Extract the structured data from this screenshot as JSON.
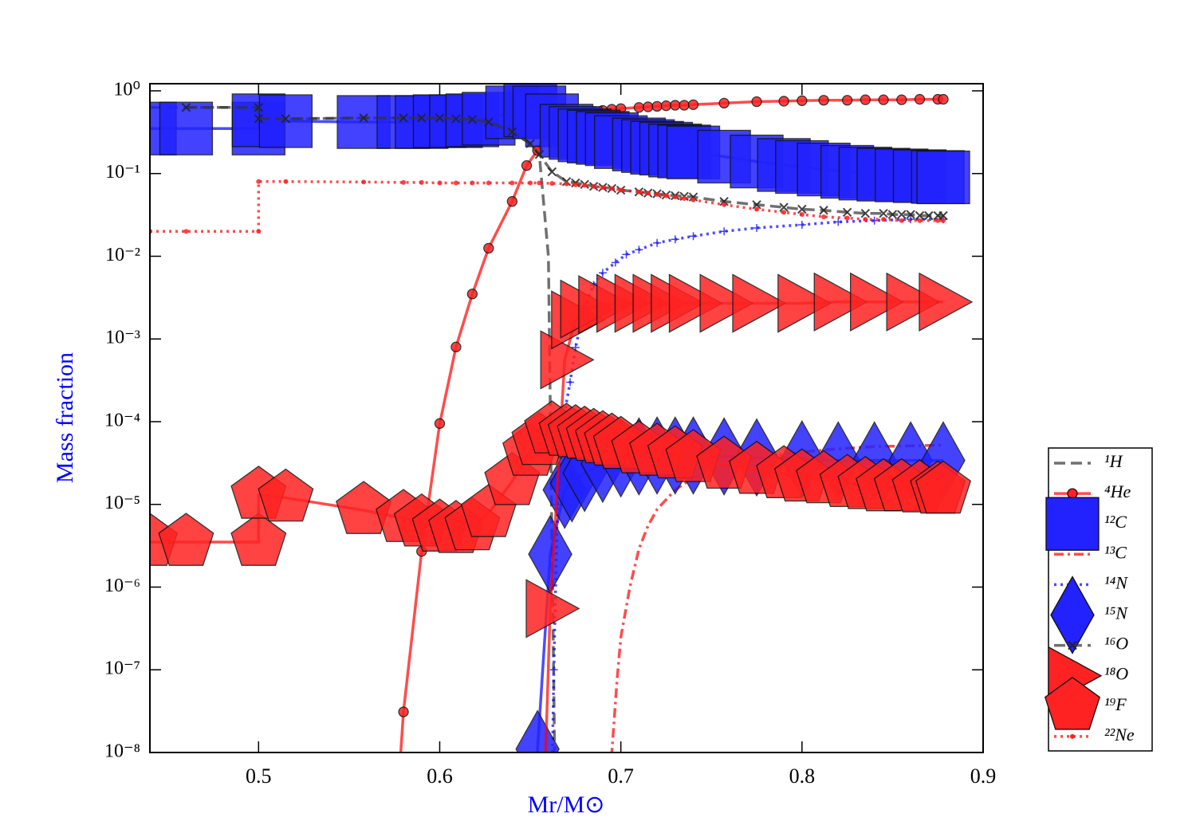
{
  "chart_data": {
    "type": "line",
    "xlabel": "Mr/M⊙",
    "ylabel": "Mass fraction",
    "xlim": [
      0.44,
      0.9
    ],
    "ylim": [
      1e-08,
      1.22
    ],
    "log_y": true,
    "xticks": [
      0.5,
      0.6,
      0.7,
      0.8,
      0.9
    ],
    "yticks": [
      {
        "value": 1e-08,
        "label": "10⁻⁸"
      },
      {
        "value": 1e-07,
        "label": "10⁻⁷"
      },
      {
        "value": 1e-06,
        "label": "10⁻⁶"
      },
      {
        "value": 1e-05,
        "label": "10⁻⁵"
      },
      {
        "value": 0.0001,
        "label": "10⁻⁴"
      },
      {
        "value": 0.001,
        "label": "10⁻³"
      },
      {
        "value": 0.01,
        "label": "10⁻²"
      },
      {
        "value": 0.1,
        "label": "10⁻¹"
      },
      {
        "value": 1,
        "label": "10⁰"
      }
    ],
    "legend": "outside-lower-right",
    "series": [
      {
        "name": "¹H",
        "color": "#333333",
        "linestyle": "dashed",
        "marker": "none",
        "x": [
          0.44,
          0.5,
          0.5,
          0.52,
          0.56,
          0.6,
          0.62,
          0.63,
          0.64,
          0.65,
          0.655,
          0.66,
          0.664
        ],
        "values": [
          0.63,
          0.63,
          0.46,
          0.46,
          0.47,
          0.47,
          0.45,
          0.42,
          0.32,
          0.23,
          0.17,
          0.01,
          1e-09
        ]
      },
      {
        "name": "⁴He",
        "color": "#ff0000",
        "linestyle": "solid",
        "marker": "o",
        "x": [
          0.5755,
          0.58,
          0.59,
          0.6,
          0.609,
          0.618,
          0.627,
          0.64,
          0.648,
          0.654,
          0.661,
          0.67,
          0.675,
          0.68,
          0.685,
          0.69,
          0.695,
          0.7,
          0.71,
          0.715,
          0.72,
          0.725,
          0.73,
          0.735,
          0.74,
          0.757,
          0.775,
          0.79,
          0.8,
          0.812,
          0.825,
          0.835,
          0.845,
          0.855,
          0.865,
          0.875,
          0.878
        ],
        "values": [
          1e-09,
          3.1e-08,
          2.7e-06,
          9.5e-05,
          0.0008,
          0.0035,
          0.0125,
          0.046,
          0.125,
          0.19,
          0.39,
          0.5,
          0.52,
          0.54,
          0.56,
          0.58,
          0.6,
          0.61,
          0.63,
          0.64,
          0.65,
          0.66,
          0.67,
          0.67,
          0.68,
          0.71,
          0.74,
          0.75,
          0.76,
          0.77,
          0.77,
          0.78,
          0.78,
          0.78,
          0.79,
          0.79,
          0.79
        ]
      },
      {
        "name": "¹²C",
        "color": "#0000ff",
        "linestyle": "solid",
        "marker": "s",
        "x": [
          0.44,
          0.46,
          0.5,
          0.5,
          0.515,
          0.558,
          0.58,
          0.59,
          0.6,
          0.609,
          0.618,
          0.627,
          0.64,
          0.65,
          0.655,
          0.662,
          0.67,
          0.675,
          0.68,
          0.685,
          0.69,
          0.695,
          0.7,
          0.71,
          0.715,
          0.72,
          0.725,
          0.73,
          0.735,
          0.74,
          0.757,
          0.775,
          0.79,
          0.8,
          0.812,
          0.825,
          0.835,
          0.845,
          0.855,
          0.865,
          0.875,
          0.878
        ],
        "values": [
          0.35,
          0.35,
          0.35,
          0.44,
          0.43,
          0.42,
          0.42,
          0.42,
          0.43,
          0.43,
          0.44,
          0.46,
          0.55,
          0.58,
          0.55,
          0.44,
          0.33,
          0.31,
          0.29,
          0.28,
          0.27,
          0.26,
          0.24,
          0.225,
          0.215,
          0.205,
          0.2,
          0.19,
          0.185,
          0.18,
          0.16,
          0.14,
          0.127,
          0.12,
          0.112,
          0.105,
          0.1,
          0.097,
          0.095,
          0.093,
          0.091,
          0.09
        ]
      },
      {
        "name": "¹³C",
        "color": "#ff0000",
        "linestyle": "dashdot",
        "marker": "none",
        "x": [
          0.694,
          0.696,
          0.698,
          0.7,
          0.705,
          0.71,
          0.715,
          0.72,
          0.73,
          0.74,
          0.75,
          0.76,
          0.78,
          0.8,
          0.82,
          0.84,
          0.86,
          0.878
        ],
        "values": [
          5e-09,
          2e-08,
          8e-08,
          2.5e-07,
          1e-06,
          2.9e-06,
          5.5e-06,
          8.7e-06,
          1.5e-05,
          2.1e-05,
          2.6e-05,
          3e-05,
          3.7e-05,
          4.3e-05,
          4.7e-05,
          5e-05,
          5.1e-05,
          5.2e-05
        ]
      },
      {
        "name": "¹⁴N",
        "color": "#0000ff",
        "linestyle": "dotted",
        "marker": "+",
        "x": [
          0.6615,
          0.663,
          0.665,
          0.668,
          0.672,
          0.675,
          0.68,
          0.685,
          0.69,
          0.697,
          0.703,
          0.71,
          0.72,
          0.73,
          0.74,
          0.757,
          0.775,
          0.8,
          0.82,
          0.84,
          0.86,
          0.878
        ],
        "values": [
          1e-09,
          1e-07,
          1e-05,
          0.0001,
          0.0003,
          0.00079,
          0.0025,
          0.0045,
          0.0063,
          0.0084,
          0.0105,
          0.012,
          0.0145,
          0.016,
          0.0175,
          0.02,
          0.022,
          0.024,
          0.026,
          0.027,
          0.028,
          0.028
        ]
      },
      {
        "name": "¹⁵N",
        "color": "#0000ff",
        "linestyle": "solid",
        "marker": "d",
        "x": [
          0.653,
          0.654,
          0.661,
          0.669,
          0.673,
          0.68,
          0.69,
          0.7,
          0.71,
          0.72,
          0.73,
          0.74,
          0.757,
          0.775,
          0.8,
          0.82,
          0.84,
          0.86,
          0.878
        ],
        "values": [
          1e-09,
          1.1e-08,
          2.5e-06,
          1.5e-05,
          1.8e-05,
          2.4e-05,
          3.1e-05,
          3.6e-05,
          3.8e-05,
          3.9e-05,
          3.9e-05,
          3.9e-05,
          3.8e-05,
          3.7e-05,
          3.5e-05,
          3.4e-05,
          3.4e-05,
          3.4e-05,
          3.4e-05
        ]
      },
      {
        "name": "¹⁶O",
        "color": "#333333",
        "linestyle": "dashed",
        "marker": "x",
        "x": [
          0.46,
          0.5,
          0.5,
          0.515,
          0.558,
          0.58,
          0.59,
          0.6,
          0.609,
          0.618,
          0.627,
          0.64,
          0.65,
          0.655,
          0.662,
          0.67,
          0.675,
          0.68,
          0.685,
          0.69,
          0.695,
          0.7,
          0.71,
          0.715,
          0.72,
          0.725,
          0.73,
          0.735,
          0.74,
          0.757,
          0.775,
          0.79,
          0.8,
          0.812,
          0.825,
          0.835,
          0.845,
          0.85,
          0.855,
          0.86,
          0.865,
          0.87,
          0.875,
          0.878
        ],
        "values": [
          0.63,
          0.63,
          0.46,
          0.46,
          0.47,
          0.47,
          0.47,
          0.47,
          0.46,
          0.45,
          0.42,
          0.32,
          0.23,
          0.17,
          0.105,
          0.08,
          0.077,
          0.074,
          0.07,
          0.068,
          0.066,
          0.063,
          0.06,
          0.058,
          0.057,
          0.055,
          0.054,
          0.053,
          0.052,
          0.046,
          0.042,
          0.039,
          0.037,
          0.036,
          0.034,
          0.033,
          0.033,
          0.032,
          0.032,
          0.032,
          0.031,
          0.031,
          0.031,
          0.031
        ]
      },
      {
        "name": "¹⁸O",
        "color": "#ff0000",
        "linestyle": "solid",
        "marker": ">",
        "x": [
          0.657,
          0.661,
          0.669,
          0.675,
          0.68,
          0.69,
          0.7,
          0.71,
          0.72,
          0.73,
          0.74,
          0.757,
          0.775,
          0.8,
          0.82,
          0.84,
          0.86,
          0.878
        ],
        "values": [
          1e-09,
          5.5e-07,
          0.00056,
          0.0017,
          0.0023,
          0.0026,
          0.0027,
          0.0027,
          0.0027,
          0.0027,
          0.0027,
          0.0027,
          0.0027,
          0.0027,
          0.0028,
          0.0028,
          0.0028,
          0.0028
        ]
      },
      {
        "name": "¹⁹F",
        "color": "#ff0000",
        "linestyle": "solid",
        "marker": "p",
        "x": [
          0.44,
          0.46,
          0.5,
          0.5,
          0.515,
          0.558,
          0.58,
          0.59,
          0.6,
          0.609,
          0.618,
          0.627,
          0.64,
          0.65,
          0.655,
          0.662,
          0.67,
          0.675,
          0.68,
          0.685,
          0.69,
          0.695,
          0.7,
          0.71,
          0.72,
          0.73,
          0.74,
          0.757,
          0.775,
          0.79,
          0.8,
          0.812,
          0.825,
          0.835,
          0.845,
          0.855,
          0.865,
          0.875,
          0.878
        ],
        "values": [
          3.5e-06,
          3.5e-06,
          3.5e-06,
          1.3e-05,
          1.2e-05,
          8.5e-06,
          6.8e-06,
          6e-06,
          5.2e-06,
          5e-06,
          5.4e-06,
          7.8e-06,
          1.9e-05,
          4.3e-05,
          5.8e-05,
          8e-05,
          7.5e-05,
          7.2e-05,
          6.9e-05,
          6.5e-05,
          6.1e-05,
          5.7e-05,
          5.2e-05,
          4.6e-05,
          4.3e-05,
          4e-05,
          3.6e-05,
          3e-05,
          2.6e-05,
          2.3e-05,
          2.1e-05,
          2e-05,
          1.8e-05,
          1.7e-05,
          1.6e-05,
          1.6e-05,
          1.55e-05,
          1.5e-05,
          1.5e-05
        ]
      },
      {
        "name": "²²Ne",
        "color": "#ff0000",
        "linestyle": "dotted",
        "marker": ".",
        "x": [
          0.44,
          0.46,
          0.5,
          0.5,
          0.515,
          0.558,
          0.58,
          0.59,
          0.6,
          0.609,
          0.618,
          0.627,
          0.64,
          0.65,
          0.655,
          0.662,
          0.67,
          0.675,
          0.68,
          0.685,
          0.69,
          0.695,
          0.7,
          0.71,
          0.715,
          0.72,
          0.725,
          0.73,
          0.735,
          0.74,
          0.757,
          0.775,
          0.79,
          0.8,
          0.812,
          0.825,
          0.835,
          0.845,
          0.855,
          0.865,
          0.875,
          0.878
        ],
        "values": [
          0.02,
          0.02,
          0.02,
          0.08,
          0.08,
          0.079,
          0.078,
          0.078,
          0.077,
          0.077,
          0.077,
          0.077,
          0.077,
          0.077,
          0.077,
          0.076,
          0.075,
          0.073,
          0.072,
          0.07,
          0.068,
          0.066,
          0.063,
          0.06,
          0.058,
          0.056,
          0.054,
          0.052,
          0.05,
          0.048,
          0.042,
          0.037,
          0.034,
          0.032,
          0.03,
          0.029,
          0.028,
          0.028,
          0.027,
          0.027,
          0.027,
          0.027
        ]
      }
    ]
  }
}
